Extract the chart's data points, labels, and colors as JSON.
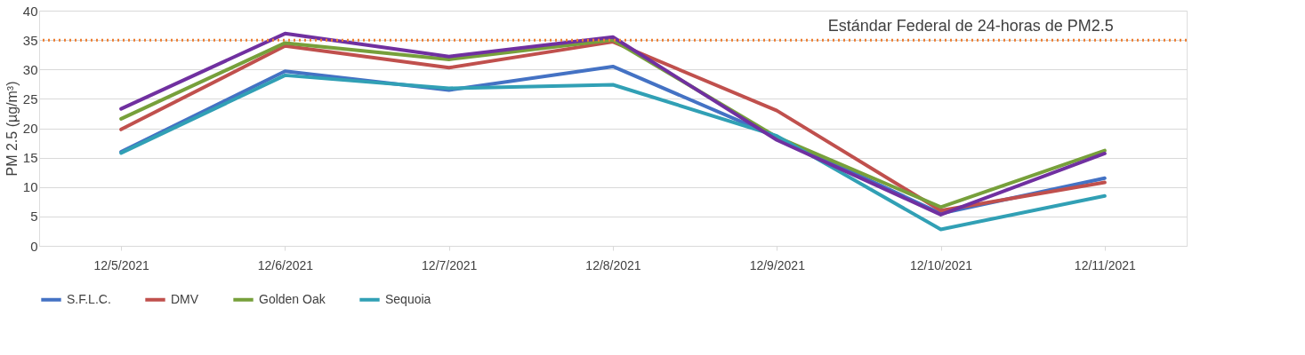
{
  "chart_data": {
    "type": "line",
    "ylabel": "PM 2.5 (µg/m³)",
    "categories": [
      "12/5/2021",
      "12/6/2021",
      "12/7/2021",
      "12/8/2021",
      "12/9/2021",
      "12/10/2021",
      "12/11/2021"
    ],
    "series": [
      {
        "name": "S.F.L.C.",
        "color": "#4472c4",
        "values": [
          16,
          29.7,
          26.5,
          30.5,
          18.5,
          5.5,
          11.5
        ]
      },
      {
        "name": "DMV",
        "color": "#c0504d",
        "values": [
          19.8,
          34,
          30.3,
          34.7,
          23,
          6,
          10.8
        ]
      },
      {
        "name": "Golden Oak",
        "color": "#77a03b",
        "values": [
          21.6,
          34.5,
          31.7,
          35,
          18.5,
          6.6,
          16.2
        ]
      },
      {
        "color": "#7030a0",
        "values": [
          23.3,
          36.1,
          32.2,
          35.5,
          18,
          5.3,
          15.7
        ]
      },
      {
        "name": "Sequoia",
        "color": "#31a0b5",
        "values": [
          15.8,
          29,
          26.8,
          27.4,
          18.7,
          2.8,
          8.5
        ]
      }
    ],
    "ylim": [
      0,
      40
    ],
    "yticks": [
      0,
      5,
      10,
      15,
      20,
      25,
      30,
      35,
      40
    ],
    "grid": "y",
    "legend": "bottom",
    "marker": "none",
    "line_style": "solid",
    "ref_lines": [
      {
        "axis": "y",
        "value": 35,
        "label": "Estándar Federal de 24-horas de PM2.5",
        "color": "#ed7d31",
        "line_style": "dotted"
      }
    ]
  }
}
